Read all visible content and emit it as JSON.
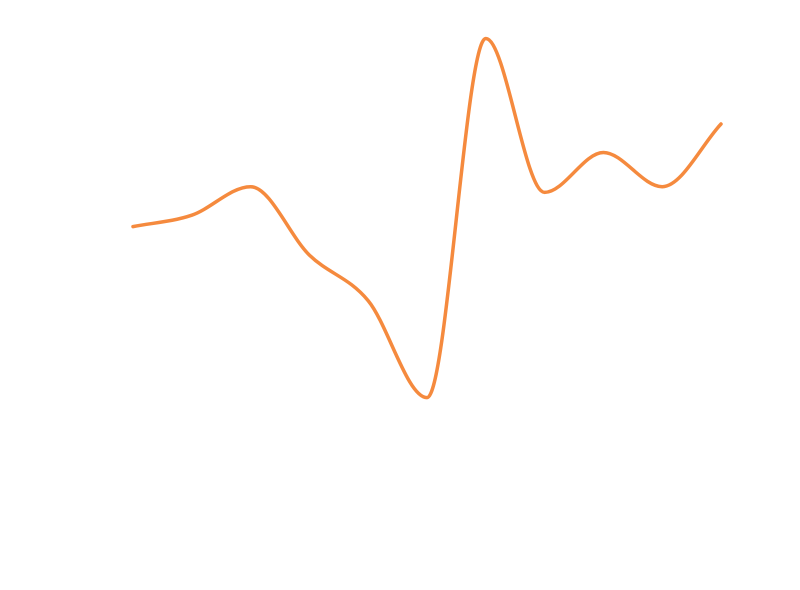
{
  "chart_data": {
    "type": "line",
    "title": "",
    "xlabel": "",
    "ylabel": "",
    "x": [
      0,
      1,
      2,
      3,
      4,
      5,
      6,
      7,
      8,
      9,
      10
    ],
    "series": [
      {
        "color": "#f58a3e",
        "values": [
          310,
          320,
          345,
          285,
          245,
          160,
          475,
          340,
          375,
          345,
          400
        ]
      }
    ],
    "xlim": [
      0,
      10
    ],
    "ylim": [
      0,
      500
    ],
    "grid": false,
    "axes_visible": false,
    "smooth": true
  }
}
